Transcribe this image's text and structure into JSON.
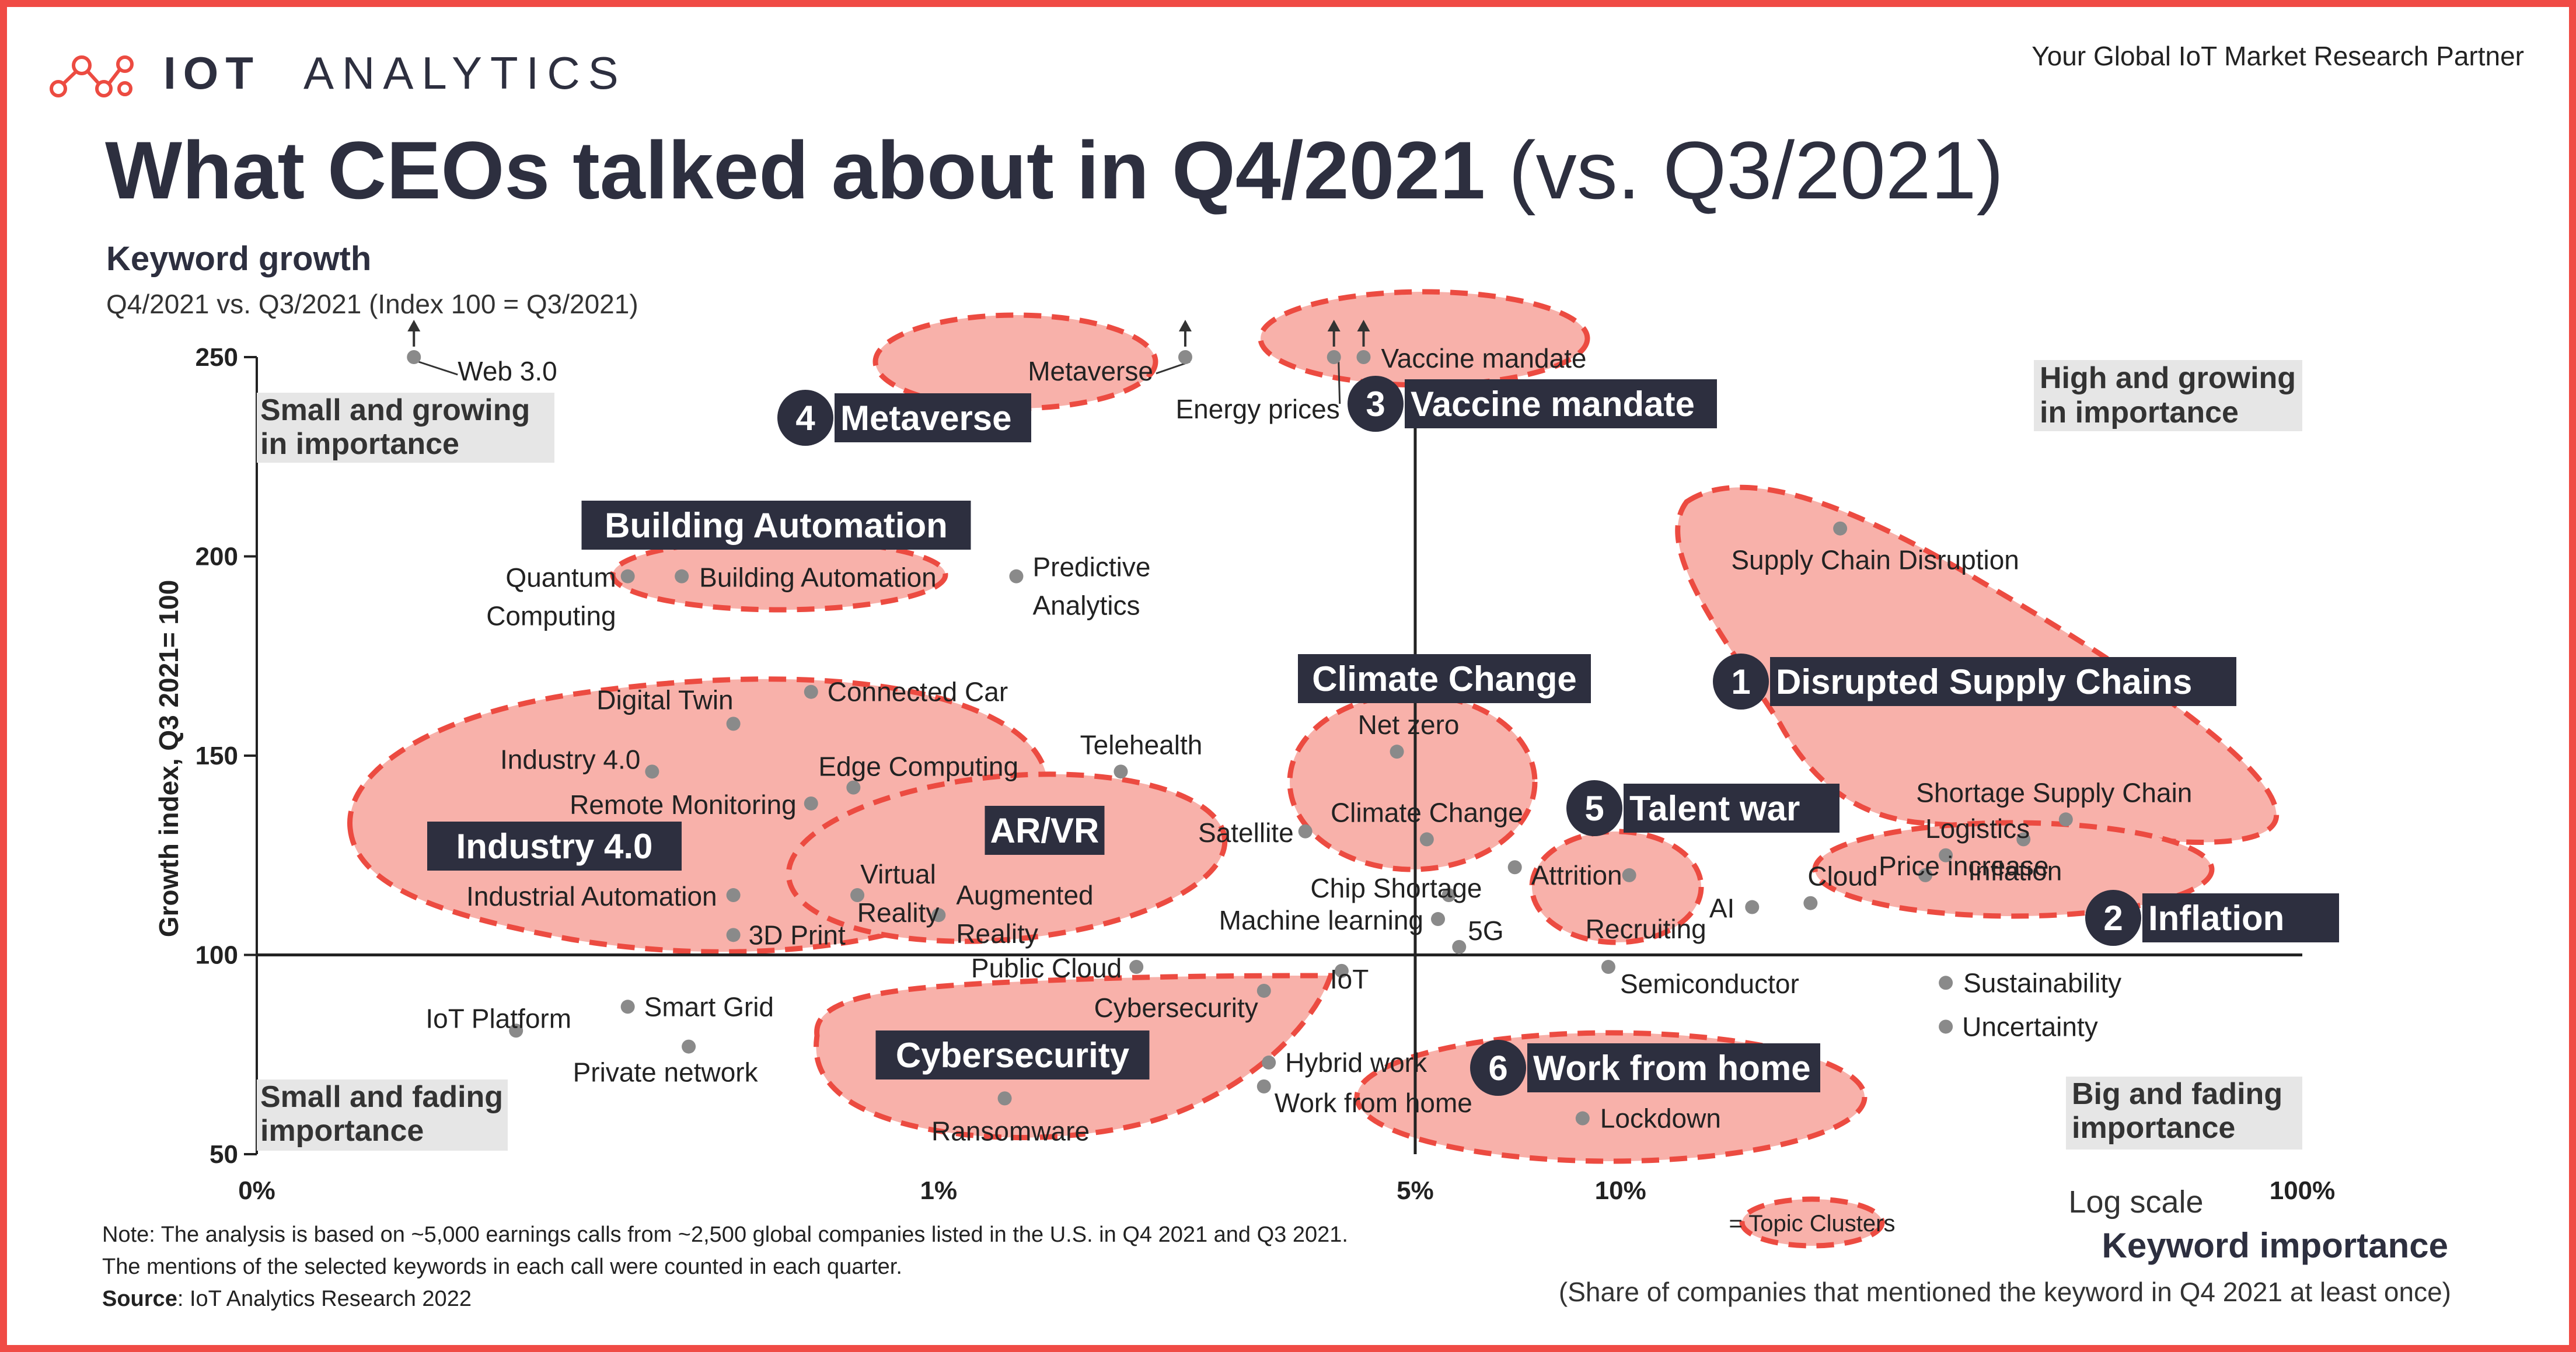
{
  "header": {
    "brand": "IOT ANALYTICS",
    "tagline": "Your Global IoT Market Research Partner",
    "title_main": "What CEOs talked about in Q4/2021",
    "title_suffix": "(vs. Q3/2021)"
  },
  "chart_data": {
    "type": "scatter",
    "title": "What CEOs talked about in Q4/2021 (vs. Q3/2021)",
    "y_title": "Keyword growth",
    "y_subtitle": "Q4/2021 vs. Q3/2021 (Index 100 = Q3/2021)",
    "ylabel": "Growth index, Q3 2021= 100",
    "xlabel": "Keyword importance",
    "x_subtitle": "(Share of companies that mentioned the keyword in Q4 2021 at least once)",
    "x_scale_label": "Log scale",
    "x_scale": "log",
    "xlim": [
      0.1,
      100
    ],
    "ylim": [
      50,
      250
    ],
    "x_ticks": [
      {
        "value": 0.1,
        "label": "0%"
      },
      {
        "value": 1,
        "label": "1%"
      },
      {
        "value": 5,
        "label": "5%"
      },
      {
        "value": 10,
        "label": "10%"
      },
      {
        "value": 100,
        "label": "100%"
      }
    ],
    "y_ticks": [
      {
        "value": 50,
        "label": "50"
      },
      {
        "value": 100,
        "label": "100"
      },
      {
        "value": 150,
        "label": "150"
      },
      {
        "value": 200,
        "label": "200"
      },
      {
        "value": 250,
        "label": "250"
      }
    ],
    "reference_lines": {
      "x": 5,
      "y": 100
    },
    "quadrants": {
      "top_left": [
        "Small and growing",
        "in importance"
      ],
      "top_right": [
        "High and growing",
        "in importance"
      ],
      "bottom_left": [
        "Small and fading",
        "importance"
      ],
      "bottom_right": [
        "Big and fading",
        "importance"
      ]
    },
    "points": [
      {
        "label": "Web 3.0",
        "x": 0.17,
        "y": 250,
        "capped": true
      },
      {
        "label": "Metaverse",
        "x": 2.3,
        "y": 250,
        "capped": true
      },
      {
        "label": "Energy prices",
        "x": 3.8,
        "y": 250,
        "capped": true
      },
      {
        "label": "Vaccine mandate",
        "x": 4.2,
        "y": 250,
        "capped": true
      },
      {
        "label": "Quantum Computing",
        "x": 0.35,
        "y": 195
      },
      {
        "label": "Building Automation",
        "x": 0.42,
        "y": 195
      },
      {
        "label": "Predictive Analytics",
        "x": 1.3,
        "y": 195
      },
      {
        "label": "Supply Chain Disruption",
        "x": 21,
        "y": 207
      },
      {
        "label": "Connected Car",
        "x": 0.65,
        "y": 166
      },
      {
        "label": "Digital Twin",
        "x": 0.5,
        "y": 158
      },
      {
        "label": "Industry 4.0",
        "x": 0.38,
        "y": 146
      },
      {
        "label": "Telehealth",
        "x": 1.85,
        "y": 146
      },
      {
        "label": "Net zero",
        "x": 4.7,
        "y": 151
      },
      {
        "label": "Edge Computing",
        "x": 0.75,
        "y": 142
      },
      {
        "label": "Remote Monitoring",
        "x": 0.65,
        "y": 138
      },
      {
        "label": "Satellite",
        "x": 3.45,
        "y": 131
      },
      {
        "label": "Climate Change",
        "x": 5.2,
        "y": 129
      },
      {
        "label": "Shortage Supply Chain",
        "x": 45,
        "y": 134
      },
      {
        "label": "Logistics",
        "x": 30,
        "y": 125
      },
      {
        "label": "Inflation",
        "x": 39,
        "y": 129
      },
      {
        "label": "Attrition",
        "x": 7,
        "y": 122
      },
      {
        "label": "Recruiting",
        "x": 10.3,
        "y": 120
      },
      {
        "label": "Virtual Reality",
        "x": 0.76,
        "y": 115
      },
      {
        "label": "Industrial Automation",
        "x": 0.5,
        "y": 115
      },
      {
        "label": "Chip Shortage",
        "x": 5.6,
        "y": 115
      },
      {
        "label": "Price increase",
        "x": 28,
        "y": 120
      },
      {
        "label": "AI",
        "x": 15.6,
        "y": 112
      },
      {
        "label": "Cloud",
        "x": 19,
        "y": 113
      },
      {
        "label": "Augmented Reality",
        "x": 1.0,
        "y": 110
      },
      {
        "label": "Machine learning",
        "x": 5.4,
        "y": 109
      },
      {
        "label": "3D Print",
        "x": 0.5,
        "y": 105
      },
      {
        "label": "5G",
        "x": 5.8,
        "y": 102
      },
      {
        "label": "Public Cloud",
        "x": 1.95,
        "y": 97
      },
      {
        "label": "IoT",
        "x": 3.9,
        "y": 96
      },
      {
        "label": "Semiconductor",
        "x": 9.6,
        "y": 97
      },
      {
        "label": "Sustainability",
        "x": 30,
        "y": 93
      },
      {
        "label": "Cybersecurity",
        "x": 3.0,
        "y": 91
      },
      {
        "label": "Smart Grid",
        "x": 0.35,
        "y": 87
      },
      {
        "label": "Uncertainty",
        "x": 30,
        "y": 82
      },
      {
        "label": "IoT Platform",
        "x": 0.24,
        "y": 81
      },
      {
        "label": "Private network",
        "x": 0.43,
        "y": 77
      },
      {
        "label": "Hybrid work",
        "x": 3.05,
        "y": 73
      },
      {
        "label": "Work from home",
        "x": 3.0,
        "y": 67
      },
      {
        "label": "Ransomware",
        "x": 1.25,
        "y": 64
      },
      {
        "label": "Lockdown",
        "x": 8.8,
        "y": 59
      }
    ],
    "clusters": [
      {
        "number": "1",
        "name": "Disrupted Supply Chains"
      },
      {
        "number": "2",
        "name": "Inflation"
      },
      {
        "number": "3",
        "name": "Vaccine mandate"
      },
      {
        "number": "4",
        "name": "Metaverse"
      },
      {
        "number": "5",
        "name": "Talent war"
      },
      {
        "number": "6",
        "name": "Work from home"
      },
      {
        "number": "",
        "name": "Building Automation"
      },
      {
        "number": "",
        "name": "Industry 4.0"
      },
      {
        "number": "",
        "name": "AR/VR"
      },
      {
        "number": "",
        "name": "Climate Change"
      },
      {
        "number": "",
        "name": "Cybersecurity"
      }
    ],
    "legend": {
      "label": "= Topic Clusters"
    }
  },
  "footer": {
    "note_line1": "Note: The analysis is based on ~5,000 earnings calls from ~2,500 global companies listed in the U.S. in Q4 2021 and Q3 2021.",
    "note_line2": "The mentions of the selected keywords in each call were counted in each quarter.",
    "source_label": "Source",
    "source_text": ": IoT Analytics Research 2022"
  },
  "colors": {
    "accent": "#ec4b41",
    "cluster_fill": "#f8b1aa",
    "label_dark": "#2d2f3f",
    "quadrant_box": "#e6e6e6",
    "dot": "#8a8a8a"
  }
}
